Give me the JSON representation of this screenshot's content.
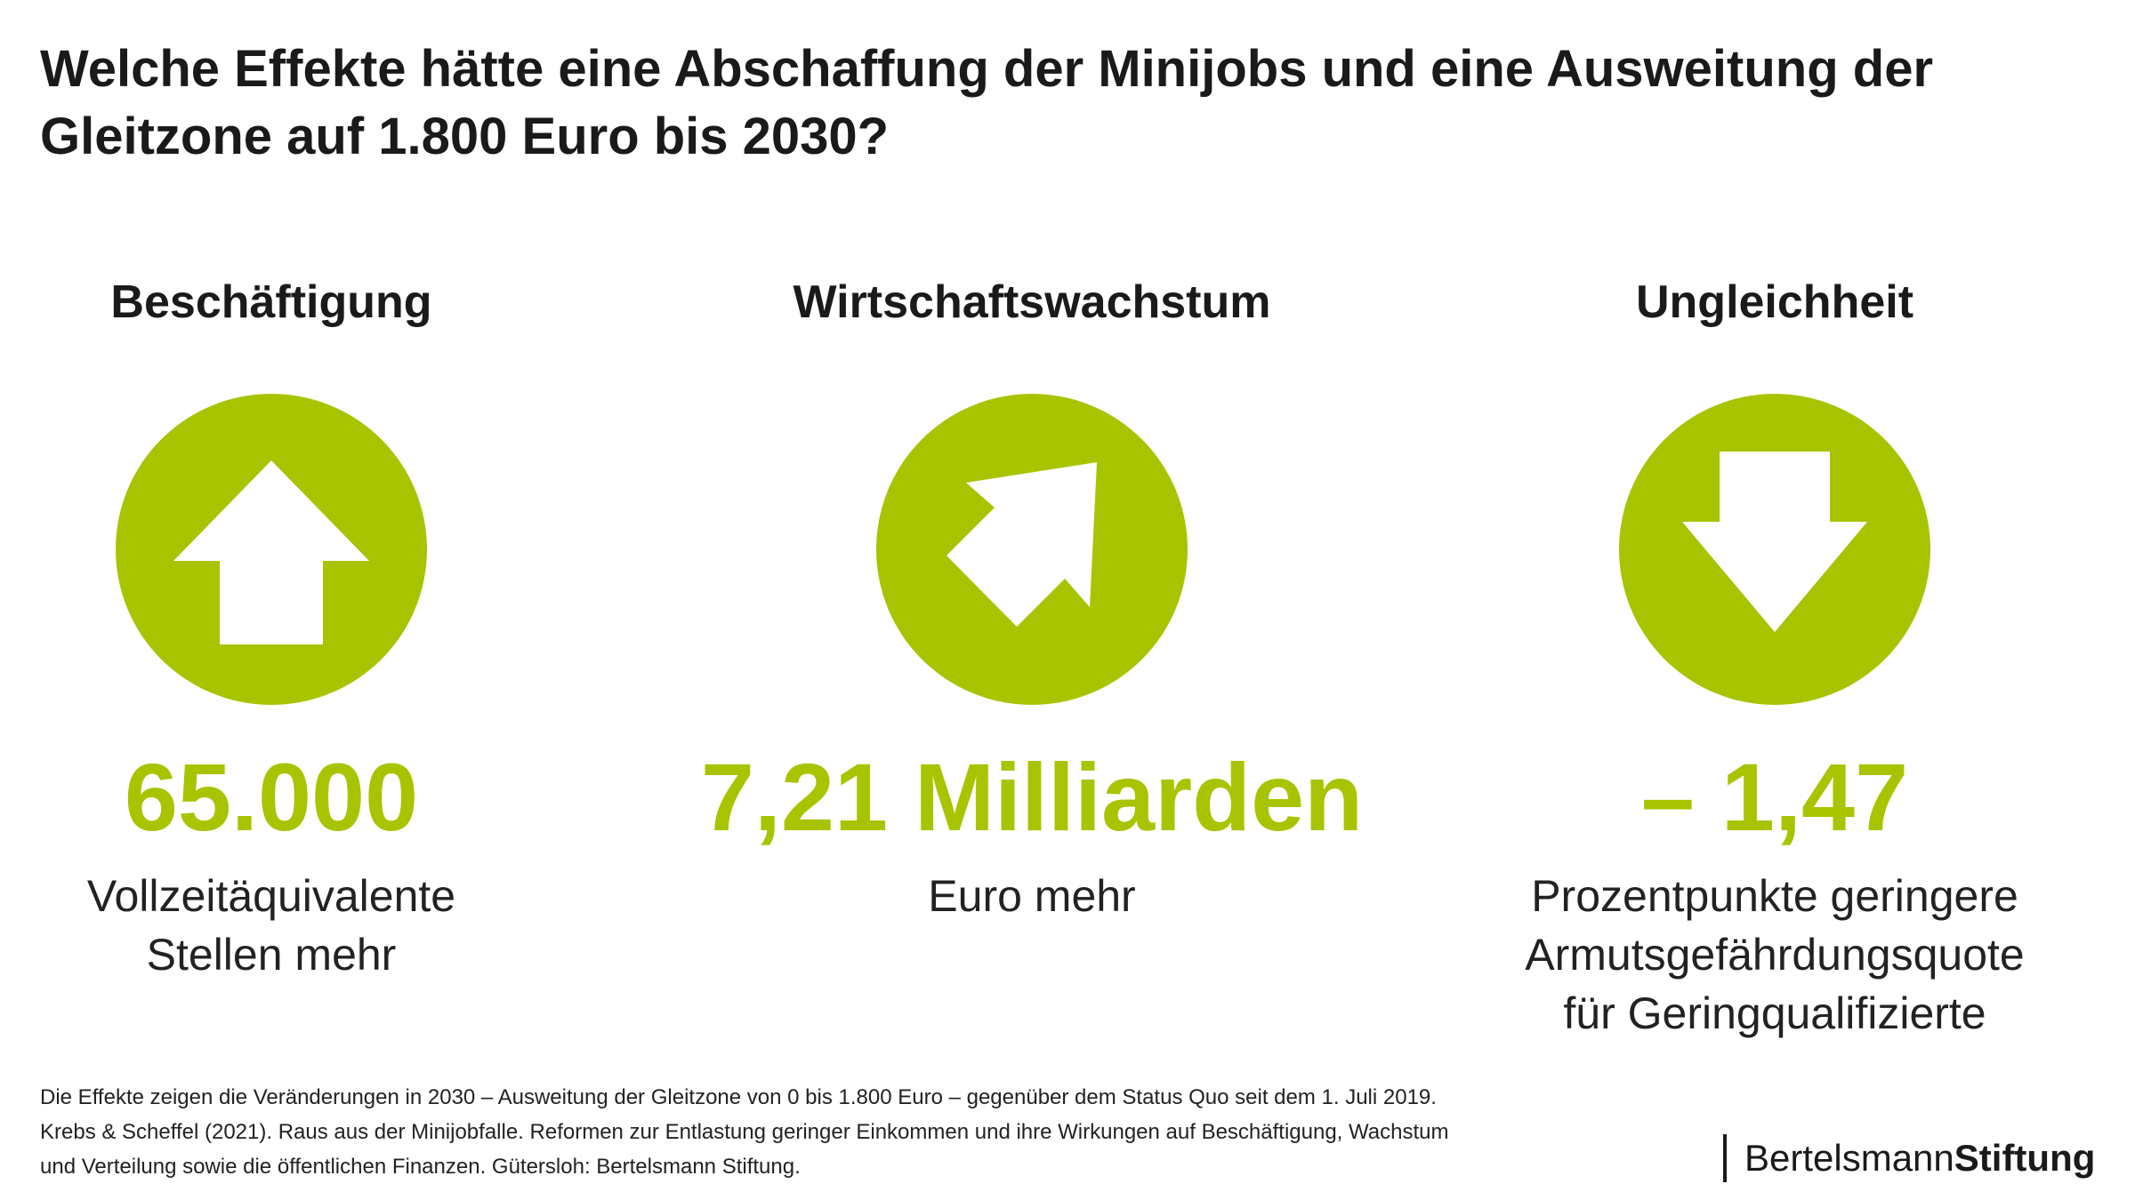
{
  "title_lines": [
    "Welche Effekte hätte eine Abschaffung der Minijobs und eine Ausweitung der",
    "Gleitzone auf 1.800 Euro bis 2030?"
  ],
  "colors": {
    "accent": "#a8c400",
    "text": "#1a1a1a",
    "background": "#ffffff"
  },
  "columns": [
    {
      "heading": "Beschäftigung",
      "icon": "arrow-up-icon",
      "value": "65.000",
      "description_lines": [
        "Vollzeitäquivalente",
        "Stellen mehr"
      ]
    },
    {
      "heading": "Wirtschaftswachstum",
      "icon": "arrow-up-right-icon",
      "value": "7,21 Milliarden",
      "description_lines": [
        "Euro mehr"
      ]
    },
    {
      "heading": "Ungleichheit",
      "icon": "arrow-down-icon",
      "value": "– 1,47",
      "description_lines": [
        "Prozentpunkte geringere",
        "Armutsgefährdungsquote",
        "für Geringqualifizierte"
      ]
    }
  ],
  "footnote_lines": [
    "Die Effekte zeigen die Veränderungen in 2030 – Ausweitung der Gleitzone von 0 bis 1.800 Euro – gegenüber dem Status Quo seit dem 1. Juli 2019.",
    "Krebs & Scheffel (2021). Raus aus der Minijobfalle. Reformen zur Entlastung geringer Einkommen und ihre Wirkungen auf Beschäftigung, Wachstum",
    "und Verteilung sowie die öffentlichen Finanzen. Gütersloh: Bertelsmann Stiftung."
  ],
  "brand": {
    "light": "Bertelsmann",
    "bold": "Stiftung"
  }
}
